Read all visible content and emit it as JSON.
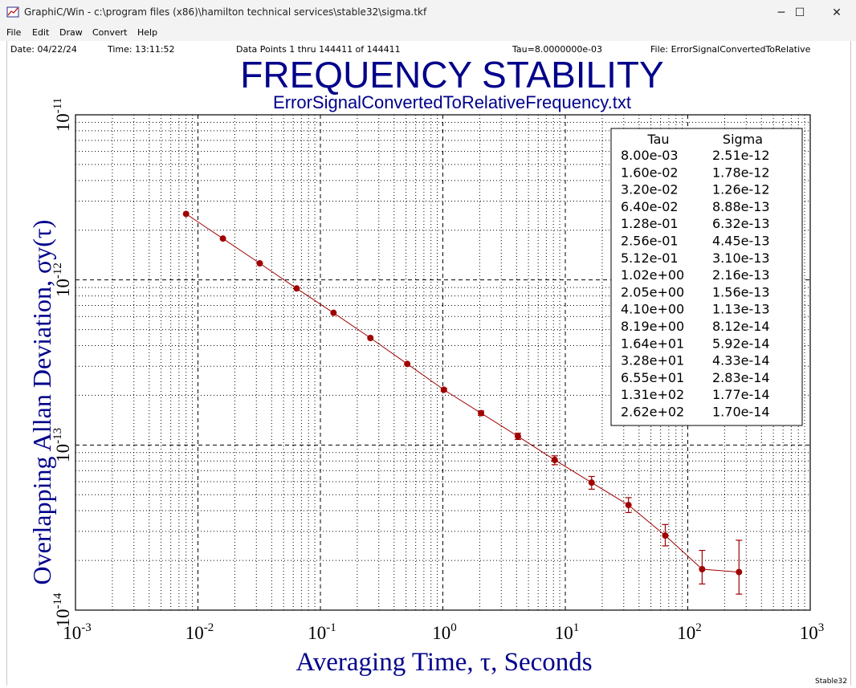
{
  "window": {
    "title": "GraphiC/Win - c:\\program files (x86)\\hamilton technical services\\stable32\\sigma.tkf",
    "minimize": "─",
    "maximize": "☐",
    "close": "✕"
  },
  "menu": [
    "File",
    "Edit",
    "Draw",
    "Convert",
    "Help"
  ],
  "header": {
    "date": "Date: 04/22/24",
    "time": "Time: 13:11:52",
    "points": "Data Points 1 thru 144411 of 144411",
    "tau": "Tau=8.0000000e-03",
    "file": "File: ErrorSignalConvertedToRelative"
  },
  "footer_tag": "Stable32",
  "colors": {
    "title": "#00008b",
    "series": "#a00000",
    "grid": "#000000"
  },
  "chart_data": {
    "type": "line",
    "title": "FREQUENCY STABILITY",
    "subtitle": "ErrorSignalConvertedToRelativeFrequency.txt",
    "xlabel": "Averaging Time, τ, Seconds",
    "ylabel": "Overlapping Allan Deviation, σy(τ)",
    "x_scale": "log",
    "y_scale": "log",
    "xlim": [
      0.001,
      1000
    ],
    "ylim": [
      1e-14,
      1e-11
    ],
    "x_ticks": [
      {
        "value": 0.001,
        "base": "10",
        "exp": "-3"
      },
      {
        "value": 0.01,
        "base": "10",
        "exp": "-2"
      },
      {
        "value": 0.1,
        "base": "10",
        "exp": "-1"
      },
      {
        "value": 1,
        "base": "10",
        "exp": "0"
      },
      {
        "value": 10,
        "base": "10",
        "exp": "1"
      },
      {
        "value": 100,
        "base": "10",
        "exp": "2"
      },
      {
        "value": 1000,
        "base": "10",
        "exp": "3"
      }
    ],
    "y_ticks": [
      {
        "value": 1e-14,
        "base": "10",
        "exp": "-14"
      },
      {
        "value": 1e-13,
        "base": "10",
        "exp": "-13"
      },
      {
        "value": 1e-12,
        "base": "10",
        "exp": "-12"
      },
      {
        "value": 1e-11,
        "base": "10",
        "exp": "-11"
      }
    ],
    "grid": true,
    "legend_position": "top-right",
    "table_headers": [
      "Tau",
      "Sigma"
    ],
    "table_rows": [
      [
        "8.00e-03",
        "2.51e-12"
      ],
      [
        "1.60e-02",
        "1.78e-12"
      ],
      [
        "3.20e-02",
        "1.26e-12"
      ],
      [
        "6.40e-02",
        "8.88e-13"
      ],
      [
        "1.28e-01",
        "6.32e-13"
      ],
      [
        "2.56e-01",
        "4.45e-13"
      ],
      [
        "5.12e-01",
        "3.10e-13"
      ],
      [
        "1.02e+00",
        "2.16e-13"
      ],
      [
        "2.05e+00",
        "1.56e-13"
      ],
      [
        "4.10e+00",
        "1.13e-13"
      ],
      [
        "8.19e+00",
        "8.12e-14"
      ],
      [
        "1.64e+01",
        "5.92e-14"
      ],
      [
        "3.28e+01",
        "4.33e-14"
      ],
      [
        "6.55e+01",
        "2.83e-14"
      ],
      [
        "1.31e+02",
        "1.77e-14"
      ],
      [
        "2.62e+02",
        "1.70e-14"
      ]
    ],
    "series": [
      {
        "x": [
          0.008,
          0.016,
          0.032,
          0.064,
          0.128,
          0.256,
          0.512,
          1.02,
          2.05,
          4.1,
          8.19,
          16.4,
          32.8,
          65.5,
          131,
          262
        ],
        "y": [
          2.51e-12,
          1.78e-12,
          1.26e-12,
          8.88e-13,
          6.32e-13,
          4.45e-13,
          3.1e-13,
          2.16e-13,
          1.56e-13,
          1.13e-13,
          8.12e-14,
          5.92e-14,
          4.33e-14,
          2.83e-14,
          1.77e-14,
          1.7e-14
        ],
        "err_low": [
          2.5e-12,
          1.77e-12,
          1.25e-12,
          8.83e-13,
          6.27e-13,
          4.4e-13,
          3.05e-13,
          2.11e-13,
          1.51e-13,
          1.08e-13,
          7.6e-14,
          5.4e-14,
          3.9e-14,
          2.45e-14,
          1.44e-14,
          1.25e-14
        ],
        "err_high": [
          2.52e-12,
          1.79e-12,
          1.27e-12,
          8.93e-13,
          6.37e-13,
          4.5e-13,
          3.15e-13,
          2.21e-13,
          1.61e-13,
          1.18e-13,
          8.6e-14,
          6.45e-14,
          4.8e-14,
          3.3e-14,
          2.3e-14,
          2.65e-14
        ]
      }
    ]
  }
}
